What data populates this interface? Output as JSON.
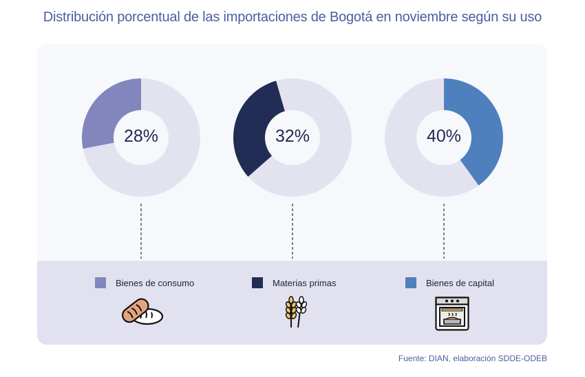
{
  "chart_data": {
    "type": "pie",
    "subtype": "donut",
    "title": "Distribución porcentual de las importaciones de Bogotá en noviembre según su uso",
    "source": "Fuente: DIAN, elaboración SDDE-ODEB",
    "series": [
      {
        "name": "Bienes de consumo",
        "value": 28,
        "label": "28%",
        "color": "#8286bd",
        "icon": "bread-icon"
      },
      {
        "name": "Materias primas",
        "value": 32,
        "label": "32%",
        "color": "#222d55",
        "icon": "wheat-icon"
      },
      {
        "name": "Bienes de capital",
        "value": 40,
        "label": "40%",
        "color": "#4e80be",
        "icon": "oven-icon"
      }
    ],
    "remainder_color": "#e3e3f0",
    "legend_position": "bottom"
  }
}
